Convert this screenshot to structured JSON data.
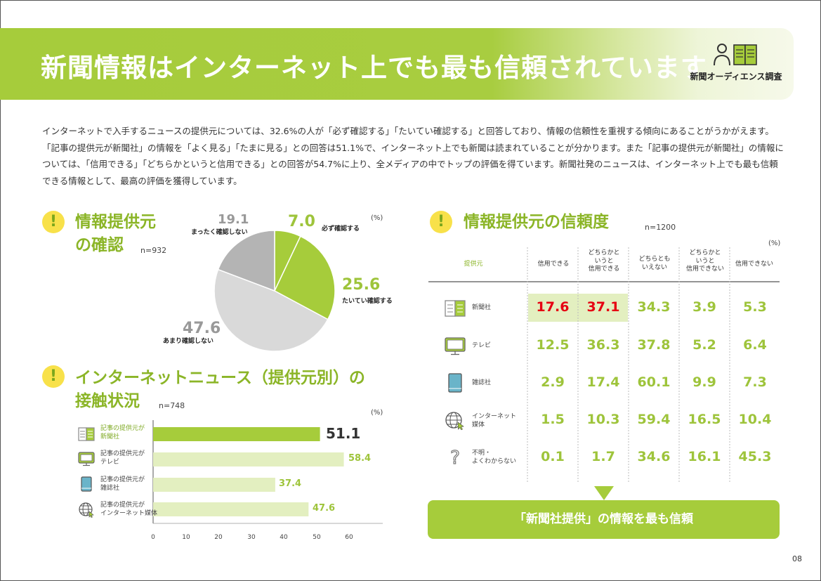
{
  "header": {
    "title": "新聞情報はインターネット上でも最も信頼されています",
    "logo_text": "新聞オーディエンス調査"
  },
  "intro": "インターネットで入手するニュースの提供元については、32.6%の人が「必ず確認する」「たいてい確認する」と回答しており、情報の信頼性を重視する傾向にあることがうかがえます。「記事の提供元が新聞社」の情報を「よく見る」「たまに見る」との回答は51.1%で、インターネット上でも新聞は読まれていることが分かります。また「記事の提供元が新聞社」の情報については、「信用できる」「どちらかというと信用できる」との回答が54.7%に上り、全メディアの中でトップの評価を得ています。新聞社発のニュースは、インターネット上でも最も信頼できる情報として、最高の評価を獲得しています。",
  "section1": {
    "title_line1": "情報提供元",
    "title_line2": "の確認",
    "n": "n=932",
    "unit": "(%)"
  },
  "section2": {
    "title_line1": "インターネットニュース（提供元別）の",
    "title_line2": "接触状況",
    "n": "n=748",
    "unit": "(%)"
  },
  "section3": {
    "title": "情報提供元の信頼度",
    "n": "n=1200",
    "unit": "(%)"
  },
  "summary": "「新聞社提供」の情報を最も信頼",
  "page_number": "08",
  "colors": {
    "accent": "#a6cc3b",
    "accent_light": "#e3efc0",
    "highlight": "#e60012",
    "pie_gray": "#b4b4b4",
    "pie_light": "#d9d9d9"
  },
  "chart_data": [
    {
      "type": "pie",
      "categories": [
        "必ず確認する",
        "たいてい確認する",
        "あまり確認しない",
        "まったく確認しない"
      ],
      "values": [
        7.0,
        25.6,
        47.6,
        19.1
      ],
      "labels": [
        "7.0",
        "25.6",
        "47.6",
        "19.1"
      ]
    },
    {
      "type": "bar",
      "orientation": "horizontal",
      "categories": [
        {
          "line1": "記事の提供元が",
          "line2": "新聞社",
          "icon": "newspaper-icon"
        },
        {
          "line1": "記事の提供元が",
          "line2": "テレビ",
          "icon": "tv-icon"
        },
        {
          "line1": "記事の提供元が",
          "line2": "雑誌社",
          "icon": "magazine-icon"
        },
        {
          "line1": "記事の提供元が",
          "line2": "インターネット媒体",
          "icon": "globe-icon"
        }
      ],
      "values": [
        51.1,
        58.4,
        37.4,
        47.6
      ],
      "labels": [
        "51.1",
        "58.4",
        "37.4",
        "47.6"
      ],
      "xlim": [
        0,
        60
      ],
      "ticks": [
        "0",
        "10",
        "20",
        "30",
        "40",
        "50",
        "60"
      ]
    },
    {
      "type": "table",
      "columns": [
        {
          "line1": "提供元"
        },
        {
          "line1": "信用できる"
        },
        {
          "line1": "どちらかと",
          "line2": "いうと",
          "line3": "信用できる"
        },
        {
          "line1": "どちらとも",
          "line2": "いえない"
        },
        {
          "line1": "どちらかと",
          "line2": "いうと",
          "line3": "信用できない"
        },
        {
          "line1": "信用できない"
        }
      ],
      "rows": [
        {
          "line1": "新聞社",
          "line2": "",
          "icon": "newspaper-icon",
          "values": [
            "17.6",
            "37.1",
            "34.3",
            "3.9",
            "5.3"
          ]
        },
        {
          "line1": "テレビ",
          "line2": "",
          "icon": "tv-icon",
          "values": [
            "12.5",
            "36.3",
            "37.8",
            "5.2",
            "6.4"
          ]
        },
        {
          "line1": "雑誌社",
          "line2": "",
          "icon": "magazine-icon",
          "values": [
            "2.9",
            "17.4",
            "60.1",
            "9.9",
            "7.3"
          ]
        },
        {
          "line1": "インターネット",
          "line2": "媒体",
          "icon": "globe-icon",
          "values": [
            "1.5",
            "10.3",
            "59.4",
            "16.5",
            "10.4"
          ]
        },
        {
          "line1": "不明・",
          "line2": "よくわからない",
          "icon": "question-icon",
          "values": [
            "0.1",
            "1.7",
            "34.6",
            "16.1",
            "45.3"
          ]
        }
      ]
    }
  ]
}
